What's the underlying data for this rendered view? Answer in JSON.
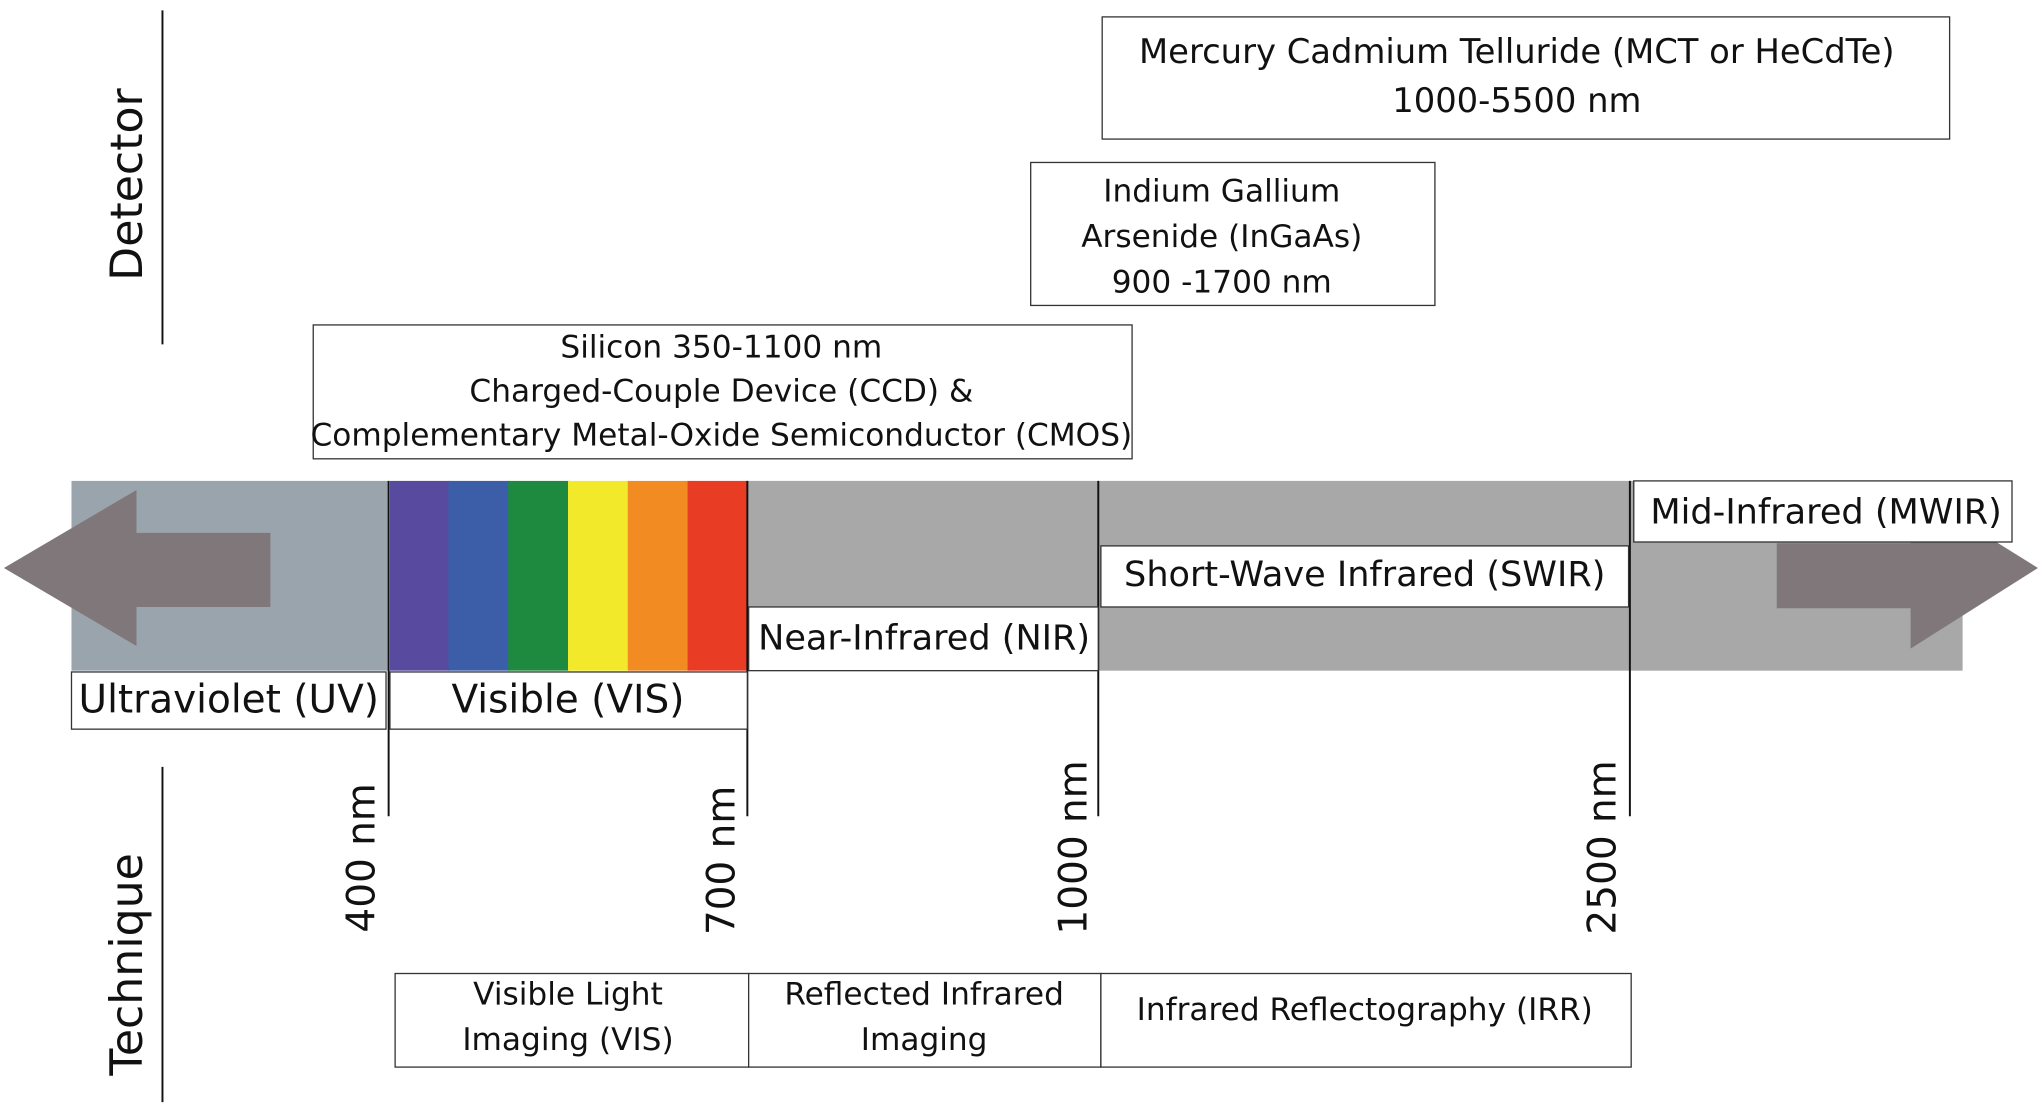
{
  "axis_labels": {
    "detector": "Detector",
    "technique": "Technique"
  },
  "regions": [
    "Ultraviolet (UV)",
    "Visible (VIS)",
    "Near-Infrared (NIR)",
    "Short-Wave Infrared (SWIR)",
    "Mid-Infrared (MWIR)"
  ],
  "wavelength_marks": [
    "400 nm",
    "700 nm",
    "1000 nm",
    "2500 nm"
  ],
  "detectors": [
    {
      "lines": [
        "Mercury Cadmium Telluride (MCT or HeCdTe)",
        "1000-5500 nm"
      ]
    },
    {
      "lines": [
        "Indium Gallium",
        "Arsenide (InGaAs)",
        "900 -1700 nm"
      ]
    },
    {
      "lines": [
        "Silicon 350-1100 nm",
        "Charged-Couple Device (CCD) &",
        "Complementary Metal-Oxide Semiconductor (CMOS)"
      ]
    }
  ],
  "techniques": [
    {
      "lines": [
        "Visible Light",
        "Imaging (VIS)"
      ]
    },
    {
      "lines": [
        "Reflected Infrared",
        "Imaging"
      ]
    },
    {
      "lines": [
        "Infrared Reflectography (IRR)"
      ]
    }
  ]
}
